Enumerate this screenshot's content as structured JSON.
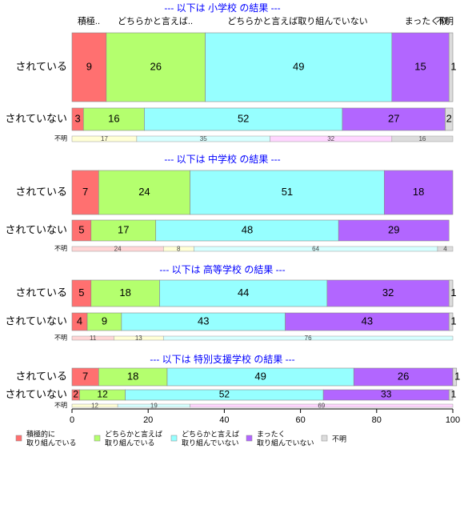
{
  "chart_data": {
    "type": "bar",
    "stacked": true,
    "orientation": "horizontal",
    "column_headers": [
      "積極..",
      "どちらかと言えば..",
      "どちらかと言えば取り組んでいない",
      "まったく取",
      "不明"
    ],
    "xlim": [
      0,
      100
    ],
    "x_ticks": [
      0,
      20,
      40,
      60,
      80,
      100
    ],
    "grid": false,
    "legend_position": "bottom",
    "series": [
      {
        "name": "積極的に\n取り組んでいる",
        "color": "#FF7070"
      },
      {
        "name": "どちらかと言えば\n取り組んでいる",
        "color": "#B4FF6E"
      },
      {
        "name": "どちらかと言えば\n取り組んでいない",
        "color": "#96FFFF"
      },
      {
        "name": "まったく\n取り組んでいない",
        "color": "#B266FF"
      },
      {
        "name": "不明",
        "color": "#DCDCDC"
      }
    ],
    "panels": [
      {
        "title": "--- 以下は 小学校 の結果 ---",
        "rows": [
          {
            "label": "されている",
            "values": [
              9,
              26,
              49,
              15,
              1
            ]
          },
          {
            "label": "されていない",
            "values": [
              3,
              16,
              52,
              27,
              2
            ]
          }
        ],
        "unknown_label": "不明",
        "unknown_values": [
          0,
          17,
          35,
          32,
          16
        ]
      },
      {
        "title": "--- 以下は 中学校 の結果 ---",
        "rows": [
          {
            "label": "されている",
            "values": [
              7,
              24,
              51,
              18,
              0
            ]
          },
          {
            "label": "されていない",
            "values": [
              5,
              17,
              48,
              29,
              0
            ]
          }
        ],
        "unknown_label": "不明",
        "unknown_values": [
          24,
          8,
          64,
          0,
          4
        ]
      },
      {
        "title": "--- 以下は 高等学校 の結果 ---",
        "rows": [
          {
            "label": "されている",
            "values": [
              5,
              18,
              44,
              32,
              1
            ]
          },
          {
            "label": "されていない",
            "values": [
              4,
              9,
              43,
              43,
              1
            ]
          }
        ],
        "unknown_label": "不明",
        "unknown_values": [
          11,
          13,
          76,
          0,
          0
        ]
      },
      {
        "title": "--- 以下は 特別支援学校 の結果 ---",
        "rows": [
          {
            "label": "されている",
            "values": [
              7,
              18,
              49,
              26,
              1
            ]
          },
          {
            "label": "されていない",
            "values": [
              2,
              12,
              52,
              33,
              1
            ]
          }
        ],
        "unknown_label": "不明",
        "unknown_values": [
          0,
          12,
          19,
          69,
          0
        ]
      }
    ],
    "unknown_colors": [
      "#FFD6D6",
      "#FFFFD6",
      "#D6FFFF",
      "#FFD6FF",
      "#DCDCDC"
    ]
  }
}
